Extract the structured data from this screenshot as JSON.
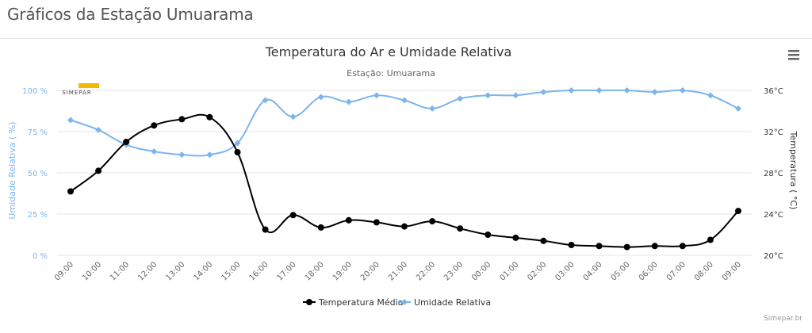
{
  "header": {
    "title": "Gráficos da Estação Umuarama"
  },
  "menu": {
    "icon": "hamburger-menu-icon"
  },
  "logo": {
    "text": "SIMEPAR",
    "icon": "simepar-logo-icon"
  },
  "credits": "Simepar.br",
  "colors": {
    "temperature": "#000000",
    "humidity": "#7cb5ec",
    "grid": "#e6e6e6",
    "axis_label": "#666666"
  },
  "chart_data": {
    "type": "line",
    "title": "Temperatura do Ar e Umidade Relativa",
    "subtitle": "Estação: Umuarama",
    "xlabel": "",
    "categories": [
      "09:00",
      "10:00",
      "11:00",
      "12:00",
      "13:00",
      "14:00",
      "15:00",
      "16:00",
      "17:00",
      "18:00",
      "19:00",
      "20:00",
      "21:00",
      "22:00",
      "23:00",
      "00:00",
      "01:00",
      "02:00",
      "03:00",
      "04:00",
      "05:00",
      "06:00",
      "07:00",
      "08:00",
      "09:00"
    ],
    "y_axes": [
      {
        "id": "humidity",
        "label": "Umidade Relativa ( %)",
        "side": "left",
        "range": [
          0,
          100
        ],
        "ticks": [
          "0 %",
          "25 %",
          "50 %",
          "75 %",
          "100 %"
        ],
        "tick_values": [
          0,
          25,
          50,
          75,
          100
        ]
      },
      {
        "id": "temperature",
        "label": "Temperatura ( °C)",
        "side": "right",
        "range": [
          20,
          36
        ],
        "ticks": [
          "20°C",
          "24°C",
          "28°C",
          "32°C",
          "36°C"
        ],
        "tick_values": [
          20,
          24,
          28,
          32,
          36
        ]
      }
    ],
    "series": [
      {
        "name": "Temperatura Média",
        "axis": "temperature",
        "marker": "circle",
        "values": [
          26.2,
          28.2,
          31.0,
          32.6,
          33.2,
          33.4,
          30.0,
          22.5,
          23.9,
          22.7,
          23.4,
          23.2,
          22.8,
          23.3,
          22.6,
          22.0,
          21.7,
          21.4,
          21.0,
          20.9,
          20.8,
          20.9,
          20.9,
          21.5,
          24.3
        ]
      },
      {
        "name": "Umidade Relativa",
        "axis": "humidity",
        "marker": "diamond",
        "values": [
          82,
          76,
          67,
          63,
          61,
          61,
          68,
          94,
          84,
          96,
          93,
          97,
          94,
          89,
          95,
          97,
          97,
          99,
          100,
          100,
          100,
          99,
          100,
          97,
          89
        ]
      }
    ],
    "grid": true,
    "legend": "bottom-center"
  }
}
